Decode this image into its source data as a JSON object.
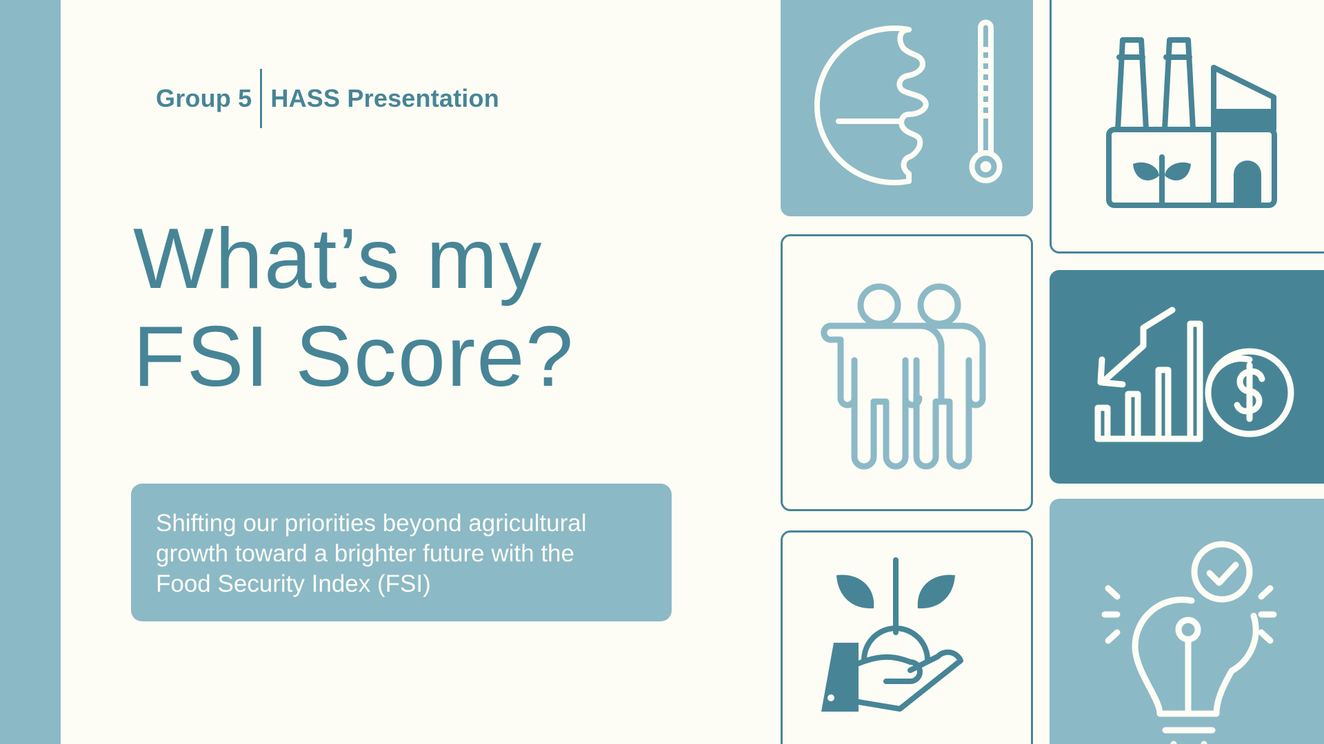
{
  "header": {
    "group": "Group 5",
    "course": "HASS Presentation"
  },
  "title": {
    "line1": "What’s my",
    "line2": "FSI Score?"
  },
  "subtitle": {
    "line1": "Shifting our priorities beyond agricultural",
    "line2": "growth toward a brighter future with the",
    "line3": "Food Security Index (FSI)"
  },
  "icons": [
    "globe-thermometer-icon",
    "factory-plant-icon",
    "people-icon",
    "chart-dollar-icon",
    "hand-sprout-icon",
    "lightbulb-check-icon"
  ],
  "colors": {
    "background": "#fdfdf6",
    "light_teal": "#8cb9c6",
    "dark_teal": "#478596"
  }
}
